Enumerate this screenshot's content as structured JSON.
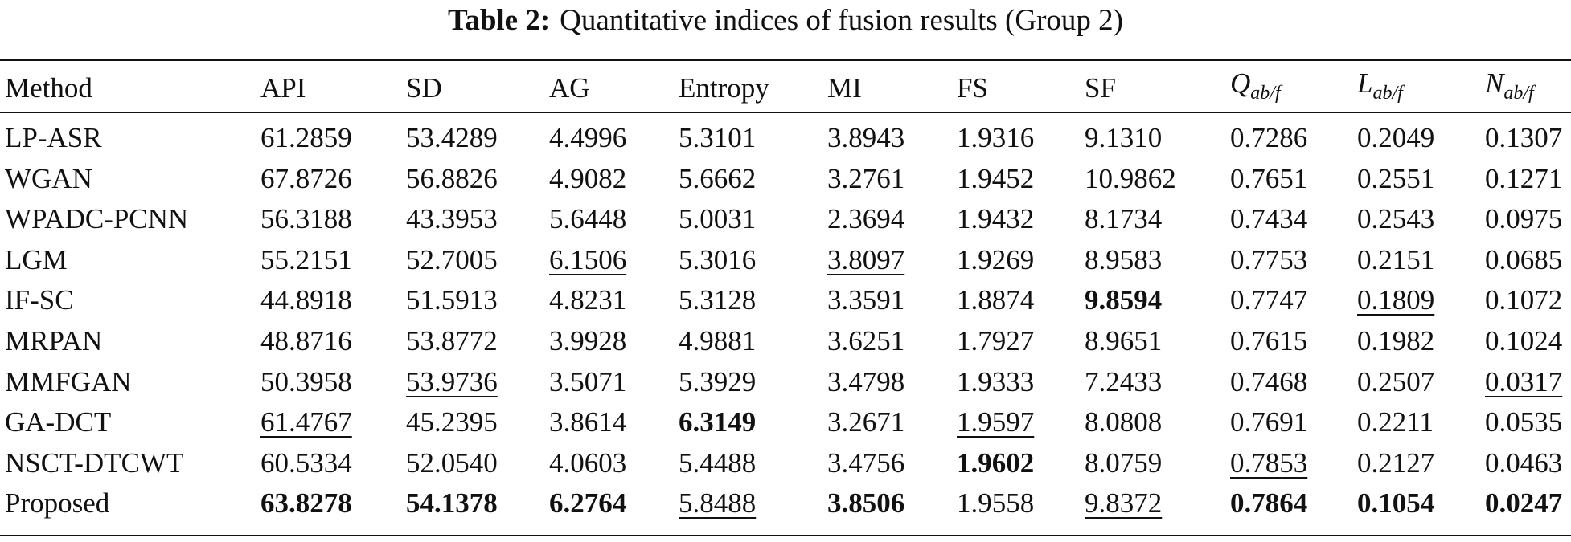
{
  "title": {
    "label": "Table 2:",
    "text": "Quantitative indices of fusion results (Group 2)"
  },
  "table": {
    "header": [
      "Method",
      "API",
      "SD",
      "AG",
      "Entropy",
      "MI",
      "FS",
      "SF",
      {
        "main": "Q",
        "sub": "ab/f"
      },
      {
        "main": "L",
        "sub": "ab/f"
      },
      {
        "main": "N",
        "sub": "ab/f"
      }
    ],
    "rows": [
      [
        "LP-ASR",
        "61.2859",
        "53.4289",
        "4.4996",
        "5.3101",
        "3.8943",
        "1.9316",
        "9.1310",
        "0.7286",
        "0.2049",
        "0.1307"
      ],
      [
        "WGAN",
        "67.8726",
        "56.8826",
        "4.9082",
        "5.6662",
        "3.2761",
        "1.9452",
        "10.9862",
        "0.7651",
        "0.2551",
        "0.1271"
      ],
      [
        "WPADC-PCNN",
        "56.3188",
        "43.3953",
        "5.6448",
        "5.0031",
        "2.3694",
        "1.9432",
        "8.1734",
        "0.7434",
        "0.2543",
        "0.0975"
      ],
      [
        "LGM",
        "55.2151",
        "52.7005",
        "6.1506",
        "5.3016",
        "3.8097",
        "1.9269",
        "8.9583",
        "0.7753",
        "0.2151",
        "0.0685"
      ],
      [
        "IF-SC",
        "44.8918",
        "51.5913",
        "4.8231",
        "5.3128",
        "3.3591",
        "1.8874",
        "9.8594",
        "0.7747",
        "0.1809",
        "0.1072"
      ],
      [
        "MRPAN",
        "48.8716",
        "53.8772",
        "3.9928",
        "4.9881",
        "3.6251",
        "1.7927",
        "8.9651",
        "0.7615",
        "0.1982",
        "0.1024"
      ],
      [
        "MMFGAN",
        "50.3958",
        "53.9736",
        "3.5071",
        "5.3929",
        "3.4798",
        "1.9333",
        "7.2433",
        "0.7468",
        "0.2507",
        "0.0317"
      ],
      [
        "GA-DCT",
        "61.4767",
        "45.2395",
        "3.8614",
        "6.3149",
        "3.2671",
        "1.9597",
        "8.0808",
        "0.7691",
        "0.2211",
        "0.0535"
      ],
      [
        "NSCT-DTCWT",
        "60.5334",
        "52.0540",
        "4.0603",
        "5.4488",
        "3.4756",
        "1.9602",
        "8.0759",
        "0.7853",
        "0.2127",
        "0.0463"
      ],
      [
        "Proposed",
        "63.8278",
        "54.1378",
        "6.2764",
        "5.8488",
        "3.8506",
        "1.9558",
        "9.8372",
        "0.7864",
        "0.1054",
        "0.0247"
      ]
    ],
    "bold": [
      [
        4,
        7
      ],
      [
        8,
        6
      ],
      [
        7,
        4
      ],
      [
        9,
        1
      ],
      [
        9,
        2
      ],
      [
        9,
        3
      ],
      [
        9,
        5
      ],
      [
        9,
        8
      ],
      [
        9,
        9
      ],
      [
        9,
        10
      ]
    ],
    "underline": [
      [
        3,
        3
      ],
      [
        3,
        5
      ],
      [
        4,
        9
      ],
      [
        6,
        2
      ],
      [
        6,
        10
      ],
      [
        7,
        1
      ],
      [
        7,
        6
      ],
      [
        8,
        8
      ],
      [
        9,
        4
      ],
      [
        9,
        7
      ]
    ]
  }
}
